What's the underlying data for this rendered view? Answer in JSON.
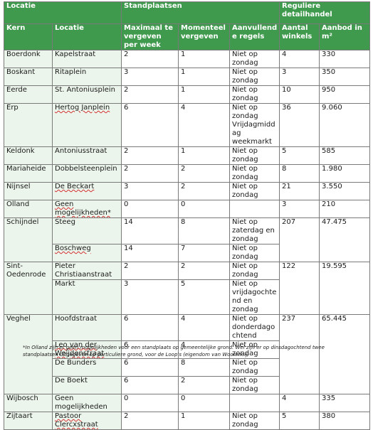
{
  "header": {
    "col_locatie": "Locatie",
    "col_standplaatsen": "Standplaatsen",
    "col_reguliere": "Reguliere detailhandel",
    "sub_kern": "Kern",
    "sub_locatie": "Locatie",
    "sub_max": "Maximaal te vergeven per week",
    "sub_momenteel": "Momenteel vergeven",
    "sub_regels": "Aanvullende regels",
    "sub_winkels": "Aantal winkels",
    "sub_aanbod": "Aanbod in m²"
  },
  "rows": [
    {
      "kern": "Boerdonk",
      "locatie": "Kapelstraat",
      "max": "2",
      "momenteel": "1",
      "regels": "Niet op zondag",
      "winkels": "4",
      "aanbod": "330"
    },
    {
      "kern": "Boskant",
      "locatie": "Ritaplein",
      "max": "3",
      "momenteel": "1",
      "regels": "Niet op zondag",
      "winkels": "3",
      "aanbod": "350"
    },
    {
      "kern": "Eerde",
      "locatie": "St. Antoniusplein",
      "max": "2",
      "momenteel": "1",
      "regels": "Niet op zondag",
      "winkels": "10",
      "aanbod": "950"
    },
    {
      "kern": "Erp",
      "locatie": "Hertog Janplein",
      "max": "6",
      "momenteel": "4",
      "regels": "Niet op zondag Vrijdagmiddag weekmarkt",
      "winkels": "36",
      "aanbod": "9.060"
    },
    {
      "kern": "Keldonk",
      "locatie": "Antoniusstraat",
      "max": "2",
      "momenteel": "1",
      "regels": "Niet op zondag",
      "winkels": "5",
      "aanbod": "585"
    },
    {
      "kern": "Mariaheide",
      "locatie": "Dobbelsteenplein",
      "max": "2",
      "momenteel": "2",
      "regels": "Niet op zondag",
      "winkels": "8",
      "aanbod": "1.980"
    },
    {
      "kern": "Nijnsel",
      "locatie": "De Beckart",
      "max": "3",
      "momenteel": "2",
      "regels": "Niet op zondag",
      "winkels": "21",
      "aanbod": "3.550"
    },
    {
      "kern": "Olland",
      "locatie": "Geen mogelijkheden*",
      "max": "0",
      "momenteel": "0",
      "regels": "",
      "winkels": "3",
      "aanbod": "210"
    },
    {
      "kern": "Schijndel",
      "locatie": "Steeg",
      "max": "14",
      "momenteel": "8",
      "regels": "Niet op zaterdag en zondag",
      "winkels": "207",
      "aanbod": "47.475"
    },
    {
      "kern": "",
      "locatie": "Boschweg",
      "max": "14",
      "momenteel": "7",
      "regels": "Niet op zondag",
      "winkels": "",
      "aanbod": ""
    },
    {
      "kern": "Sint-Oedenrode",
      "locatie": "Pieter Christiaanstraat",
      "max": "2",
      "momenteel": "2",
      "regels": "Niet op zondag",
      "winkels": "122",
      "aanbod": "19.595"
    },
    {
      "kern": "",
      "locatie": "Markt",
      "max": "3",
      "momenteel": "5",
      "regels": "Niet op vrijdagochtend en zondag",
      "winkels": "",
      "aanbod": ""
    },
    {
      "kern": "Veghel",
      "locatie": "Hoofdstraat",
      "max": "6",
      "momenteel": "4",
      "regels": "Niet op donderdagochtend",
      "winkels": "237",
      "aanbod": "65.445"
    },
    {
      "kern": "",
      "locatie": "Leo van der Weijdenstraat",
      "max": "6",
      "momenteel": "4",
      "regels": "Niet op zondag",
      "winkels": "",
      "aanbod": ""
    },
    {
      "kern": "",
      "locatie": "De Bunders",
      "max": "6",
      "momenteel": "8",
      "regels": "Niet op zondag",
      "winkels": "",
      "aanbod": ""
    },
    {
      "kern": "",
      "locatie": "De Boekt",
      "max": "6",
      "momenteel": "2",
      "regels": "Niet op zondag",
      "winkels": "",
      "aanbod": ""
    },
    {
      "kern": "Wijbosch",
      "locatie": "Geen mogelijkheden",
      "max": "0",
      "momenteel": "0",
      "regels": "",
      "winkels": "4",
      "aanbod": "335"
    },
    {
      "kern": "Zijtaart",
      "locatie": "Pastoor Clercxstraat",
      "max": "2",
      "momenteel": "1",
      "regels": "Niet op zondag",
      "winkels": "5",
      "aanbod": "380"
    }
  ],
  "footnote": "*In Olland zijn er geen mogelijkheden voor een standplaats op gemeentelijke grond. Wel zijn er op dinsdagochtend twee standplaatsen uitgegeven op particuliere grond, voor de Loop's (eigendom van Woonmeij)"
}
